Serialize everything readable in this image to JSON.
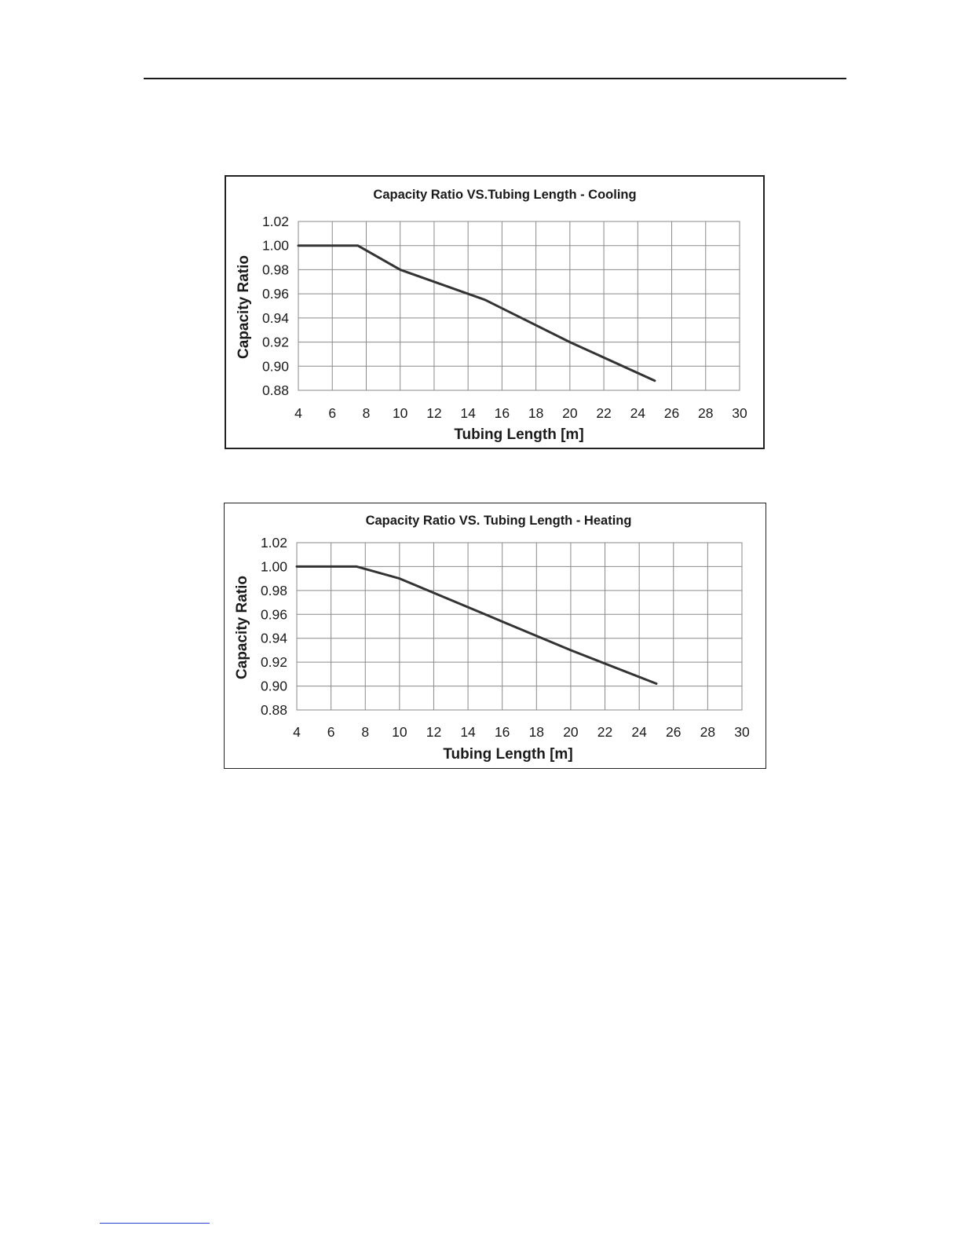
{
  "chart_data": [
    {
      "id": "cooling",
      "type": "line",
      "title": "Capacity Ratio VS.Tubing Length - Cooling",
      "xlabel": "Tubing Length [m]",
      "ylabel": "Capacity Ratio",
      "xlim": [
        4,
        30
      ],
      "ylim": [
        0.88,
        1.02
      ],
      "xticks": [
        "4",
        "6",
        "8",
        "10",
        "12",
        "14",
        "16",
        "18",
        "20",
        "22",
        "24",
        "26",
        "28",
        "30"
      ],
      "yticks": [
        "0.88",
        "0.90",
        "0.92",
        "0.94",
        "0.96",
        "0.98",
        "1.00",
        "1.02"
      ],
      "grid": true,
      "series": [
        {
          "name": "Cooling",
          "x": [
            4,
            7.5,
            10,
            15,
            20,
            25
          ],
          "y": [
            1.0,
            1.0,
            0.98,
            0.955,
            0.92,
            0.888
          ]
        }
      ]
    },
    {
      "id": "heating",
      "type": "line",
      "title": "Capacity Ratio VS. Tubing Length - Heating",
      "xlabel": "Tubing Length [m]",
      "ylabel": "Capacity Ratio",
      "xlim": [
        4,
        30
      ],
      "ylim": [
        0.88,
        1.02
      ],
      "xticks": [
        "4",
        "6",
        "8",
        "10",
        "12",
        "14",
        "16",
        "18",
        "20",
        "22",
        "24",
        "26",
        "28",
        "30"
      ],
      "yticks": [
        "0.88",
        "0.90",
        "0.92",
        "0.94",
        "0.96",
        "0.98",
        "1.00",
        "1.02"
      ],
      "grid": true,
      "series": [
        {
          "name": "Heating",
          "x": [
            4,
            7.5,
            10,
            15,
            20,
            25
          ],
          "y": [
            1.0,
            1.0,
            0.99,
            0.96,
            0.93,
            0.902
          ]
        }
      ]
    }
  ]
}
